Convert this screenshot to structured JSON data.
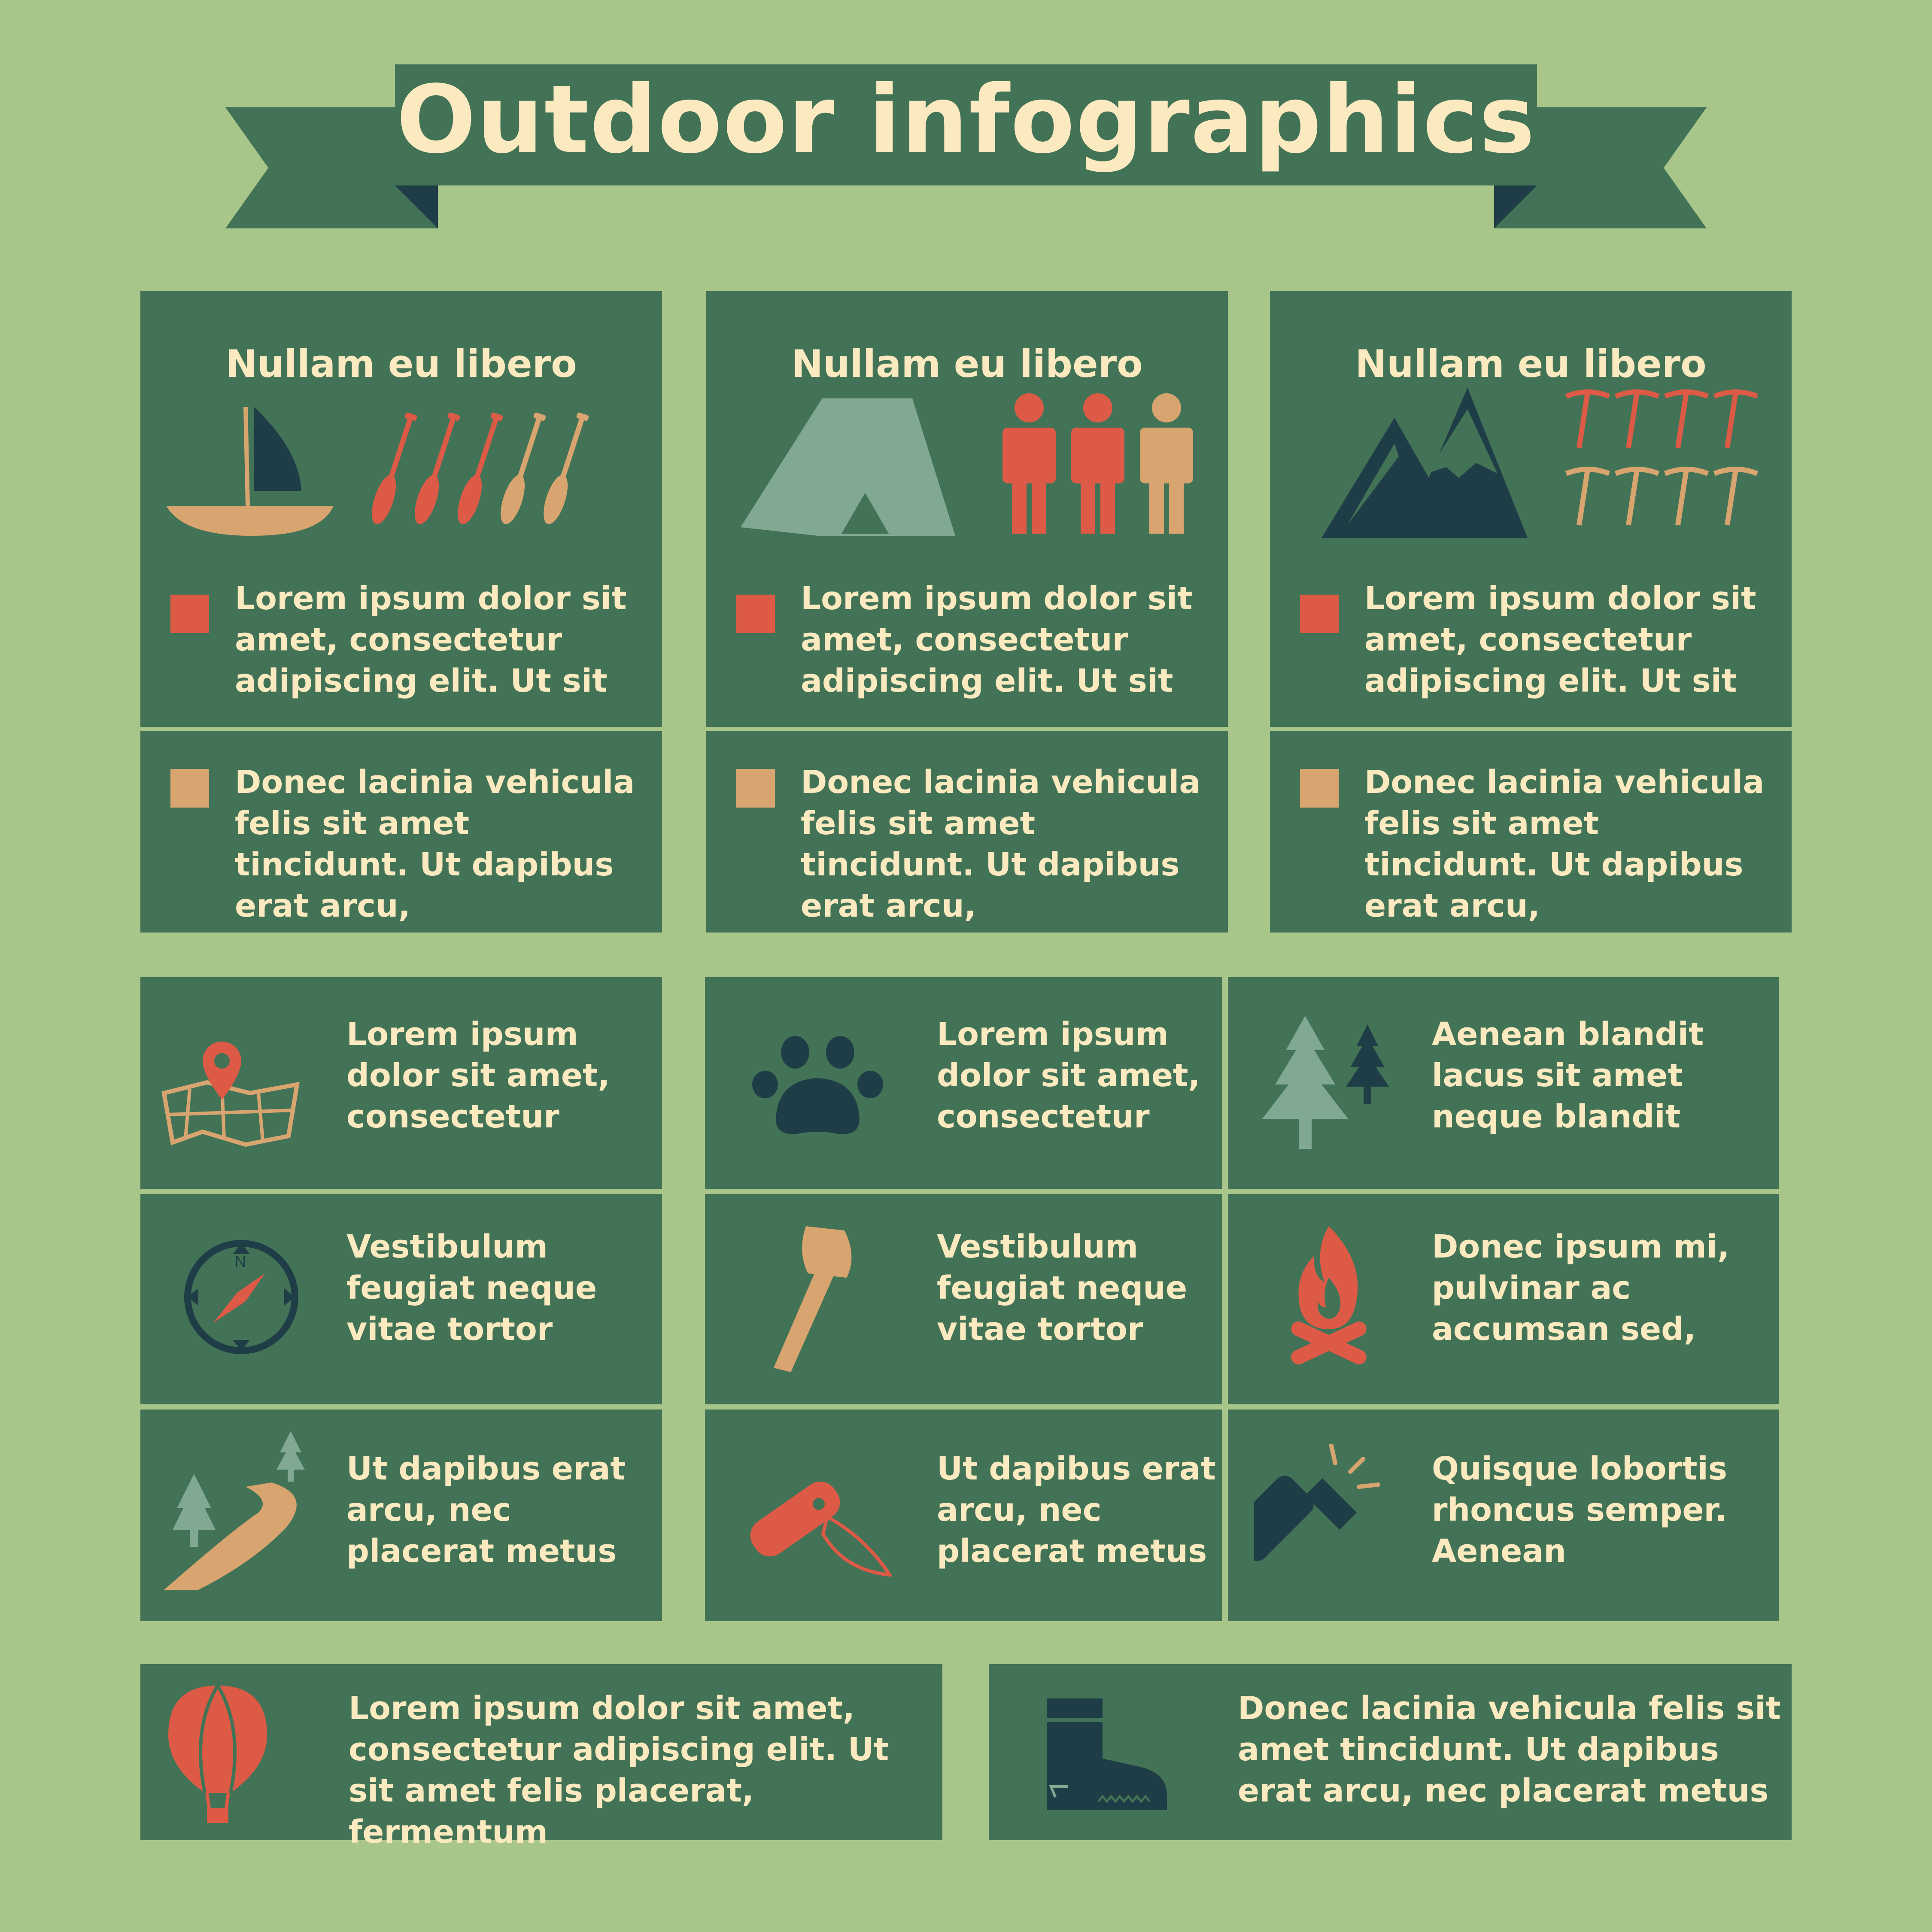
{
  "header": {
    "title": "Outdoor infographics"
  },
  "colors": {
    "background": "#a8c68a",
    "panel": "#437356",
    "cream": "#fbe9c0",
    "red": "#dc5a46",
    "tan": "#d8a46f",
    "sage": "#80a892",
    "navy": "#1f3d46"
  },
  "top_cards": [
    {
      "title": "Nullam eu libero",
      "icons": [
        "sailboat-icon",
        "paddle-icon"
      ],
      "text1": "Lorem ipsum dolor sit amet, consectetur adipiscing elit. Ut sit",
      "text2": "Donec lacinia vehicula felis sit amet tincidunt. Ut dapibus erat arcu,"
    },
    {
      "title": "Nullam eu libero",
      "icons": [
        "tent-icon",
        "person-icon"
      ],
      "text1": "Lorem ipsum dolor sit amet, consectetur adipiscing elit. Ut sit",
      "text2": "Donec lacinia vehicula felis sit amet tincidunt. Ut dapibus erat arcu,"
    },
    {
      "title": "Nullam eu libero",
      "icons": [
        "mountain-icon",
        "ice-axe-icon"
      ],
      "text1": "Lorem ipsum dolor sit amet, consectetur adipiscing elit. Ut sit",
      "text2": "Donec lacinia vehicula felis sit amet tincidunt. Ut dapibus erat arcu,"
    }
  ],
  "grid": {
    "left": [
      {
        "icon": "map-pin-icon",
        "text": "Lorem ipsum dolor sit amet, consectetur"
      },
      {
        "icon": "compass-icon",
        "compass_label": "N",
        "text": "Vestibulum feugiat neque vitae tortor"
      },
      {
        "icon": "trail-icon",
        "text": "Ut dapibus erat arcu, nec placerat metus"
      }
    ],
    "middle": [
      {
        "icon": "paw-icon",
        "text": "Lorem ipsum dolor sit amet, consectetur"
      },
      {
        "icon": "axe-icon",
        "text": "Vestibulum feugiat neque vitae tortor"
      },
      {
        "icon": "pocket-knife-icon",
        "text": "Ut dapibus erat arcu, nec placerat metus"
      }
    ],
    "right": [
      {
        "icon": "pine-trees-icon",
        "text": "Aenean blandit lacus sit amet neque blandit"
      },
      {
        "icon": "campfire-icon",
        "text": "Donec ipsum mi, pulvinar ac accumsan sed,"
      },
      {
        "icon": "flashlight-icon",
        "text": "Quisque lobortis rhoncus semper. Aenean"
      }
    ]
  },
  "bottom": [
    {
      "icon": "hot-air-balloon-icon",
      "text": "Lorem ipsum dolor sit amet, consectetur adipiscing elit. Ut sit amet felis placerat, fermentum"
    },
    {
      "icon": "hiking-boot-icon",
      "text": "Donec lacinia vehicula felis sit amet tincidunt. Ut dapibus erat arcu, nec placerat metus"
    }
  ]
}
